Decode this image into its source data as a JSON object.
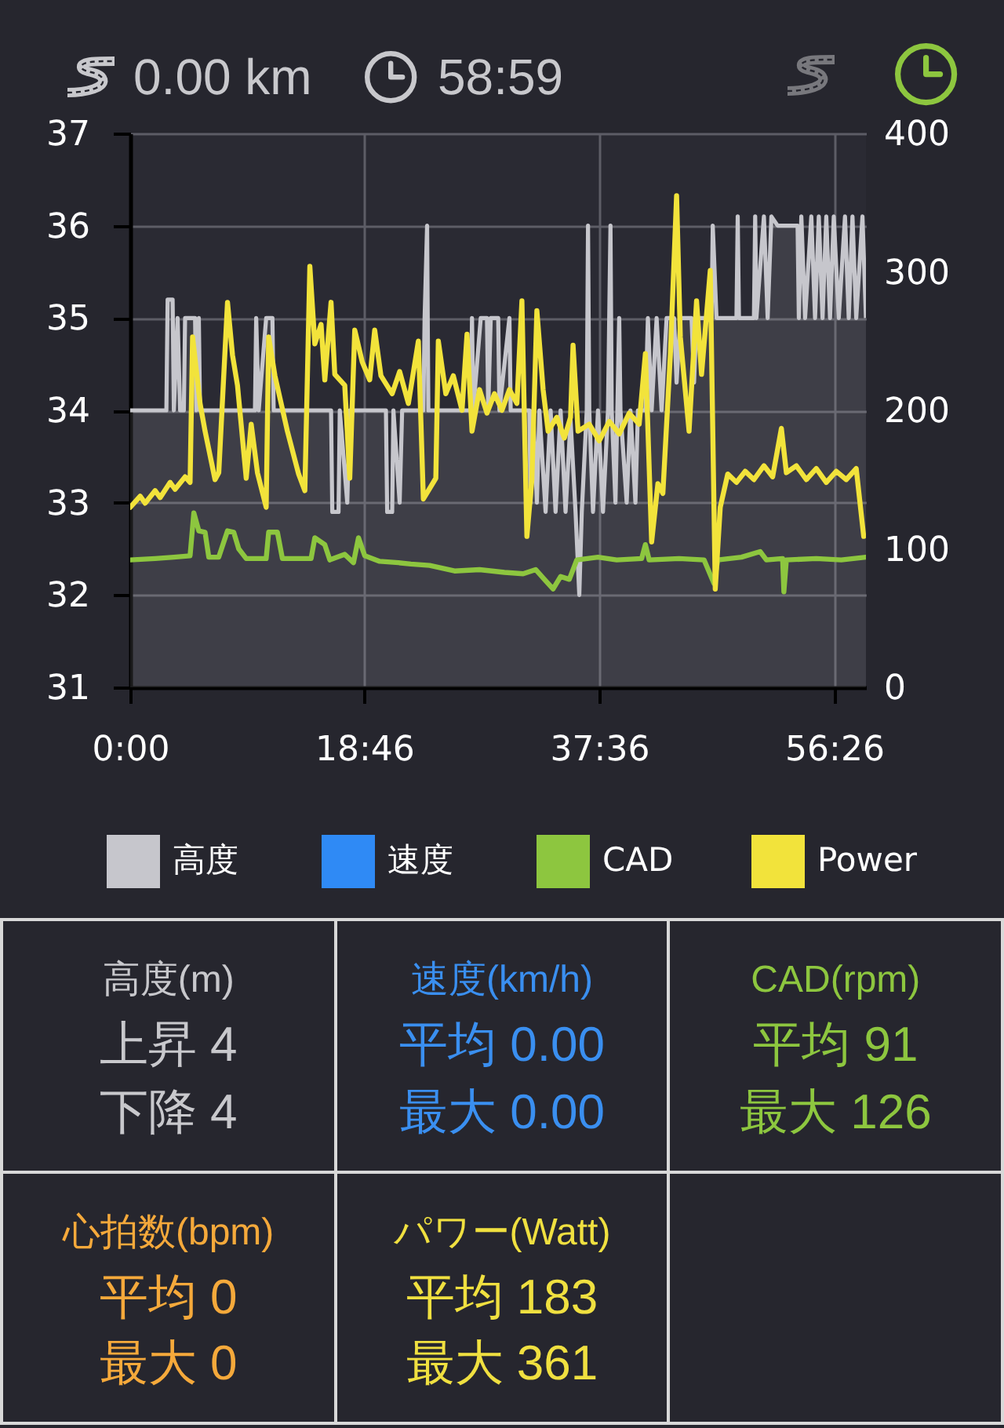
{
  "chart_data": [
    {
      "type": "line",
      "annotations": [
        "0.00 km",
        "58:59"
      ],
      "xlim": [
        0,
        58.98
      ],
      "xticks": [
        {
          "value": 0,
          "label": "0:00"
        },
        {
          "value": 18.767,
          "label": "18:46"
        },
        {
          "value": 37.6,
          "label": "37:36"
        },
        {
          "value": 56.433,
          "label": "56:26"
        }
      ],
      "ylim": [
        31,
        37
      ],
      "yticks": [
        31,
        32,
        33,
        34,
        35,
        36,
        37
      ],
      "y2lim": [
        0,
        400
      ],
      "y2ticks": [
        0,
        100,
        200,
        300,
        400
      ],
      "grid": true,
      "legend": "bottom",
      "series": [
        {
          "name": "高度",
          "type": "area",
          "color": "#c6c6cc",
          "x": [
            0,
            2.9,
            3.0,
            3.4,
            3.5,
            3.8,
            4.0,
            4.3,
            4.4,
            5.2,
            5.3,
            5.5,
            5.6,
            10.0,
            10.1,
            10.3,
            10.9,
            11.4,
            11.5,
            16.1,
            16.2,
            16.7,
            16.8,
            17.4,
            17.6,
            20.5,
            20.6,
            21.0,
            21.1,
            21.6,
            21.8,
            23.5,
            23.6,
            23.8,
            23.9,
            27.3,
            27.4,
            27.5,
            28.1,
            28.6,
            28.7,
            28.9,
            29.5,
            29.6,
            30.4,
            30.5,
            32.0,
            32.1,
            32.3,
            32.6,
            32.8,
            33.3,
            33.7,
            34.1,
            34.5,
            34.9,
            35.3,
            35.7,
            36.0,
            36.2,
            36.6,
            36.7,
            36.8,
            37.1,
            37.5,
            37.9,
            38.3,
            38.5,
            38.6,
            38.9,
            39.2,
            39.3,
            39.8,
            40.1,
            40.5,
            40.7,
            41.3,
            41.5,
            41.8,
            42.2,
            42.6,
            43.0,
            43.6,
            43.8,
            44.1,
            45.0,
            45.2,
            45.4,
            46.6,
            46.7,
            47.0,
            48.6,
            48.7,
            48.8,
            50.0,
            50.1,
            50.2,
            50.8,
            51.1,
            51.4,
            51.9,
            53.5,
            53.6,
            53.8,
            54.1,
            54.6,
            54.9,
            55.2,
            55.5,
            55.8,
            56.1,
            56.4,
            56.8,
            57.3,
            57.6,
            57.9,
            58.2,
            58.7,
            58.98
          ],
          "values": [
            34,
            34,
            35.2,
            35.2,
            34,
            35,
            34,
            34,
            35,
            35,
            34,
            35,
            34,
            34,
            35,
            34,
            35,
            35,
            34,
            34,
            32.9,
            32.9,
            34,
            33,
            34,
            34,
            32.9,
            32.9,
            34,
            33,
            34,
            34,
            35,
            36,
            34,
            34,
            35,
            34,
            35,
            35,
            34,
            35,
            35,
            34,
            35,
            34,
            34,
            33,
            34,
            33,
            34,
            32.9,
            34,
            32.9,
            34,
            32.9,
            33.9,
            32.9,
            32,
            32.9,
            34,
            36,
            34,
            32.9,
            34,
            32.9,
            34,
            36,
            34,
            33,
            35,
            34,
            33,
            34,
            33,
            34,
            34,
            35,
            34,
            35,
            34,
            35,
            35,
            34.3,
            35,
            35,
            34.3,
            35,
            35,
            36,
            35,
            35,
            36.1,
            35,
            35,
            36.1,
            35,
            36.1,
            35,
            36.1,
            36,
            36,
            35,
            36.1,
            35,
            36.1,
            35,
            36.1,
            35,
            36.1,
            35,
            36.1,
            35,
            36.1,
            35,
            36.1,
            35,
            36.1,
            35
          ]
        },
        {
          "name": "速度",
          "color": "#2f8af5"
        },
        {
          "name": "CAD",
          "color": "#8dc63f",
          "axis": "y2",
          "x": [
            0,
            2.0,
            3.5,
            4.8,
            5.1,
            5.5,
            6.0,
            6.3,
            7.1,
            7.8,
            8.3,
            8.7,
            9.3,
            10.9,
            11.1,
            11.8,
            12.2,
            14.5,
            14.8,
            15.6,
            16.0,
            17.2,
            17.9,
            18.3,
            18.8,
            20.0,
            21.5,
            22.5,
            24.0,
            26.0,
            28.0,
            30.0,
            31.5,
            32.5,
            33.2,
            33.9,
            34.5,
            35.2,
            35.8,
            37.5,
            39.0,
            41.0,
            41.3,
            41.6,
            44.0,
            46.0,
            46.8,
            47.1,
            49.0,
            50.5,
            51.0,
            52.3,
            52.4,
            52.6,
            55.0,
            57.0,
            58.98
          ],
          "values": [
            92,
            93,
            94,
            95,
            126,
            113,
            112,
            94,
            94,
            113,
            112,
            100,
            93,
            93,
            112,
            112,
            93,
            93,
            108,
            103,
            92,
            96,
            90,
            108,
            95,
            91,
            90,
            89,
            88,
            84,
            85,
            83,
            82,
            85,
            78,
            71,
            80,
            78,
            92,
            94,
            92,
            93,
            103,
            92,
            93,
            92,
            75,
            92,
            94,
            98,
            92,
            93,
            69,
            92,
            93,
            92,
            94
          ]
        },
        {
          "name": "Power",
          "color": "#f2e33b",
          "axis": "y2",
          "x": [
            0,
            0.8,
            1.2,
            2.0,
            2.4,
            3.2,
            3.6,
            4.4,
            4.8,
            5.0,
            5.6,
            6.0,
            6.8,
            7.1,
            7.8,
            8.2,
            8.6,
            9.3,
            9.7,
            10.2,
            10.9,
            11.1,
            11.6,
            12.6,
            13.5,
            14.0,
            14.4,
            14.8,
            15.3,
            15.6,
            16.1,
            16.4,
            17.2,
            17.6,
            18.0,
            18.6,
            19.2,
            19.6,
            20.1,
            21.0,
            21.6,
            22.3,
            23.1,
            23.5,
            24.5,
            24.7,
            25.3,
            25.9,
            26.6,
            27.0,
            27.4,
            28.0,
            28.6,
            29.2,
            29.8,
            30.4,
            31.0,
            31.4,
            31.8,
            32.2,
            32.6,
            33.1,
            33.5,
            34.2,
            34.8,
            35.3,
            35.5,
            35.9,
            36.8,
            37.6,
            38.4,
            39.2,
            40.0,
            40.8,
            41.3,
            41.8,
            42.3,
            42.7,
            43.3,
            43.8,
            44.1,
            44.8,
            45.4,
            45.8,
            46.5,
            46.9,
            47.3,
            47.9,
            48.6,
            49.3,
            50.0,
            50.8,
            51.5,
            52.2,
            52.6,
            53.4,
            54.2,
            55.0,
            55.8,
            56.6,
            57.4,
            58.2,
            58.8
          ],
          "values": [
            130,
            138,
            133,
            142,
            137,
            148,
            143,
            152,
            148,
            253,
            205,
            185,
            150,
            155,
            278,
            240,
            218,
            151,
            190,
            155,
            130,
            253,
            225,
            185,
            154,
            142,
            304,
            248,
            262,
            222,
            278,
            226,
            218,
            151,
            258,
            235,
            222,
            258,
            225,
            212,
            228,
            205,
            250,
            136,
            151,
            250,
            212,
            225,
            200,
            255,
            185,
            215,
            198,
            212,
            200,
            215,
            205,
            279,
            109,
            150,
            272,
            215,
            185,
            195,
            180,
            195,
            247,
            185,
            190,
            178,
            192,
            183,
            198,
            190,
            241,
            105,
            147,
            140,
            240,
            355,
            253,
            185,
            279,
            226,
            301,
            71,
            130,
            154,
            148,
            156,
            150,
            160,
            152,
            187,
            155,
            160,
            150,
            158,
            148,
            156,
            150,
            158,
            109
          ]
        }
      ]
    },
    {
      "type": "other",
      "colors": [
        "#c8c8cc",
        "#3a8ff0",
        "#8dc63f",
        "#f5a93b",
        "#f0e040"
      ],
      "annotations": [
        "高度(m)",
        "上昇 4",
        "下降 4",
        "速度(km/h)",
        "平均 0.00",
        "最大 0.00",
        "CAD(rpm)",
        "平均 91",
        "最大 126",
        "心拍数(bpm)",
        "平均 0",
        "最大 0",
        "パワー(Watt)",
        "平均 183",
        "最大 361"
      ]
    }
  ]
}
